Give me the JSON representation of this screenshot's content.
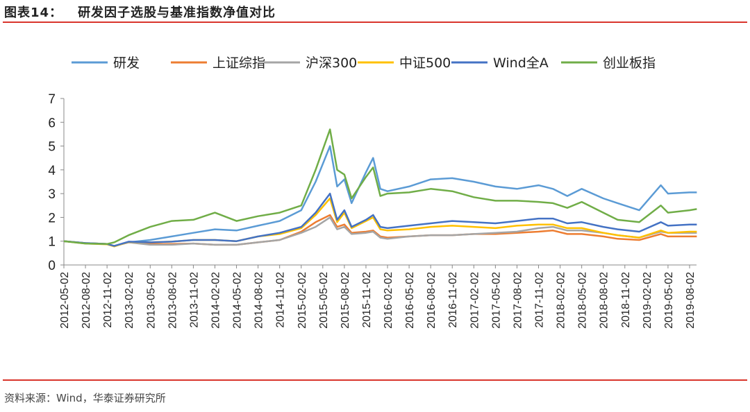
{
  "figure_label": "图表14：",
  "title": "研发因子选股与基准指数净值对比",
  "source": "资料来源：Wind，华泰证券研究所",
  "chart_data": {
    "type": "line",
    "title": "",
    "xlabel": "",
    "ylabel": "",
    "ylim": [
      0,
      7
    ],
    "yticks": [
      "0",
      "1",
      "2",
      "3",
      "4",
      "5",
      "6",
      "7"
    ],
    "grid": false,
    "legend_position": "top",
    "xticks": [
      "2012-05-02",
      "2012-08-02",
      "2012-11-02",
      "2013-02-02",
      "2013-05-02",
      "2013-08-02",
      "2013-11-02",
      "2014-02-02",
      "2014-05-02",
      "2014-08-02",
      "2014-11-02",
      "2015-02-02",
      "2015-05-02",
      "2015-08-02",
      "2015-11-02",
      "2016-02-02",
      "2016-05-02",
      "2016-08-02",
      "2016-11-02",
      "2017-02-02",
      "2017-05-02",
      "2017-08-02",
      "2017-11-02",
      "2018-02-02",
      "2018-05-02",
      "2018-08-02",
      "2018-11-02",
      "2019-02-02",
      "2019-05-02",
      "2019-08-02"
    ],
    "x": [
      "2012-05",
      "2012-08",
      "2012-11",
      "2012-12",
      "2013-02",
      "2013-05",
      "2013-08",
      "2013-11",
      "2014-02",
      "2014-05",
      "2014-08",
      "2014-11",
      "2015-02",
      "2015-04",
      "2015-06",
      "2015-07",
      "2015-08",
      "2015-09",
      "2015-11",
      "2015-12",
      "2016-01",
      "2016-02",
      "2016-05",
      "2016-08",
      "2016-11",
      "2017-02",
      "2017-05",
      "2017-08",
      "2017-11",
      "2018-01",
      "2018-03",
      "2018-05",
      "2018-08",
      "2018-10",
      "2019-01",
      "2019-04",
      "2019-05",
      "2019-08",
      "2019-09"
    ],
    "series": [
      {
        "name": "研发",
        "color": "#5B9BD5",
        "values": [
          1.0,
          0.92,
          0.88,
          0.8,
          0.95,
          1.05,
          1.2,
          1.35,
          1.5,
          1.45,
          1.65,
          1.85,
          2.3,
          3.5,
          5.0,
          3.3,
          3.6,
          2.6,
          3.9,
          4.5,
          3.2,
          3.1,
          3.3,
          3.6,
          3.65,
          3.5,
          3.3,
          3.2,
          3.35,
          3.2,
          2.9,
          3.2,
          2.8,
          2.6,
          2.3,
          3.35,
          3.0,
          3.05,
          3.05
        ]
      },
      {
        "name": "上证综指",
        "color": "#ED7D31",
        "values": [
          1.0,
          0.92,
          0.88,
          0.8,
          0.95,
          0.88,
          0.88,
          0.9,
          0.85,
          0.85,
          0.95,
          1.05,
          1.4,
          1.8,
          2.1,
          1.6,
          1.7,
          1.35,
          1.4,
          1.45,
          1.2,
          1.15,
          1.2,
          1.25,
          1.25,
          1.3,
          1.3,
          1.35,
          1.4,
          1.45,
          1.3,
          1.3,
          1.2,
          1.1,
          1.05,
          1.3,
          1.2,
          1.2,
          1.2
        ]
      },
      {
        "name": "沪深300",
        "color": "#A5A5A5",
        "values": [
          1.0,
          0.92,
          0.88,
          0.8,
          0.95,
          0.85,
          0.85,
          0.9,
          0.85,
          0.85,
          0.95,
          1.05,
          1.35,
          1.6,
          2.0,
          1.5,
          1.6,
          1.3,
          1.35,
          1.4,
          1.15,
          1.1,
          1.2,
          1.25,
          1.25,
          1.3,
          1.35,
          1.4,
          1.55,
          1.6,
          1.45,
          1.45,
          1.35,
          1.25,
          1.15,
          1.4,
          1.35,
          1.35,
          1.35
        ]
      },
      {
        "name": "中证500",
        "color": "#FFC000",
        "values": [
          1.0,
          0.9,
          0.87,
          0.78,
          0.97,
          0.95,
          0.98,
          1.05,
          1.05,
          1.0,
          1.2,
          1.3,
          1.55,
          2.1,
          2.8,
          1.8,
          2.2,
          1.55,
          1.85,
          2.0,
          1.5,
          1.45,
          1.5,
          1.6,
          1.65,
          1.6,
          1.55,
          1.65,
          1.7,
          1.7,
          1.55,
          1.55,
          1.35,
          1.25,
          1.15,
          1.45,
          1.35,
          1.4,
          1.4
        ]
      },
      {
        "name": "Wind全A",
        "color": "#4472C4",
        "values": [
          1.0,
          0.92,
          0.88,
          0.8,
          0.98,
          0.95,
          0.98,
          1.05,
          1.05,
          1.0,
          1.2,
          1.35,
          1.6,
          2.2,
          3.0,
          1.9,
          2.3,
          1.6,
          1.9,
          2.1,
          1.6,
          1.55,
          1.65,
          1.75,
          1.85,
          1.8,
          1.75,
          1.85,
          1.95,
          1.95,
          1.75,
          1.8,
          1.6,
          1.5,
          1.4,
          1.8,
          1.65,
          1.7,
          1.7
        ]
      },
      {
        "name": "创业板指",
        "color": "#70AD47",
        "values": [
          1.0,
          0.9,
          0.88,
          0.95,
          1.25,
          1.6,
          1.85,
          1.9,
          2.2,
          1.85,
          2.05,
          2.2,
          2.5,
          4.0,
          5.7,
          4.0,
          3.8,
          2.8,
          3.7,
          4.1,
          2.9,
          3.0,
          3.05,
          3.2,
          3.1,
          2.85,
          2.7,
          2.7,
          2.65,
          2.6,
          2.4,
          2.65,
          2.2,
          1.9,
          1.8,
          2.5,
          2.2,
          2.3,
          2.35
        ]
      }
    ]
  }
}
